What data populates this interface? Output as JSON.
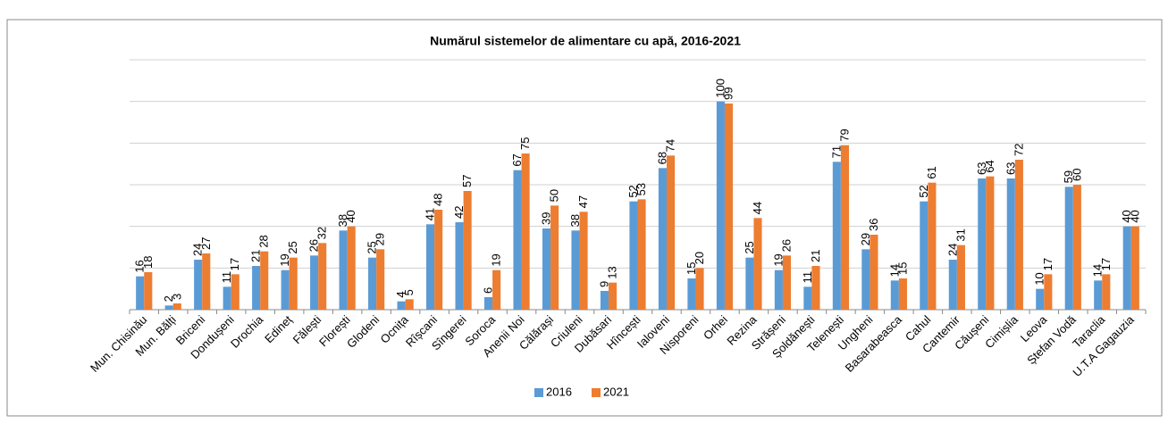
{
  "chart_data": {
    "type": "bar",
    "title": "Numărul sistemelor de alimentare cu apă, 2016-2021",
    "categories": [
      "Mun. Chisinău",
      "Mun. Bălți",
      "Briceni",
      "Dondușeni",
      "Drochia",
      "Edineț",
      "Fălești",
      "Florești",
      "Glodeni",
      "Ocnița",
      "Rîșcani",
      "Sîngerei",
      "Soroca",
      "Anenii Noi",
      "Călărași",
      "Criuleni",
      "Dubăsari",
      "Hîncești",
      "Ialoveni",
      "Nisporeni",
      "Orhei",
      "Rezina",
      "Strășeni",
      "Șoldănești",
      "Telenești",
      "Ungheni",
      "Basarabeasca",
      "Cahul",
      "Cantemir",
      "Căușeni",
      "Cimișlia",
      "Leova",
      "Ștefan Vodă",
      "Taraclia",
      "U.T.A Gagauzia"
    ],
    "series": [
      {
        "name": "2016",
        "color": "#5b9bd5",
        "values": [
          16,
          2,
          24,
          11,
          21,
          19,
          26,
          38,
          25,
          4,
          41,
          42,
          6,
          67,
          39,
          38,
          9,
          52,
          68,
          15,
          100,
          25,
          19,
          11,
          71,
          29,
          14,
          52,
          24,
          63,
          63,
          10,
          59,
          14,
          40
        ]
      },
      {
        "name": "2021",
        "color": "#ed7d31",
        "values": [
          18,
          3,
          27,
          17,
          28,
          25,
          32,
          40,
          29,
          5,
          48,
          57,
          19,
          75,
          50,
          47,
          13,
          53,
          74,
          20,
          99,
          44,
          26,
          21,
          79,
          36,
          15,
          61,
          31,
          64,
          72,
          17,
          60,
          17,
          40
        ]
      }
    ],
    "ylim": [
      0,
      120
    ],
    "yticks": [
      0,
      20,
      40,
      60,
      80,
      100,
      120
    ],
    "grid": true,
    "legend": "bottom"
  }
}
